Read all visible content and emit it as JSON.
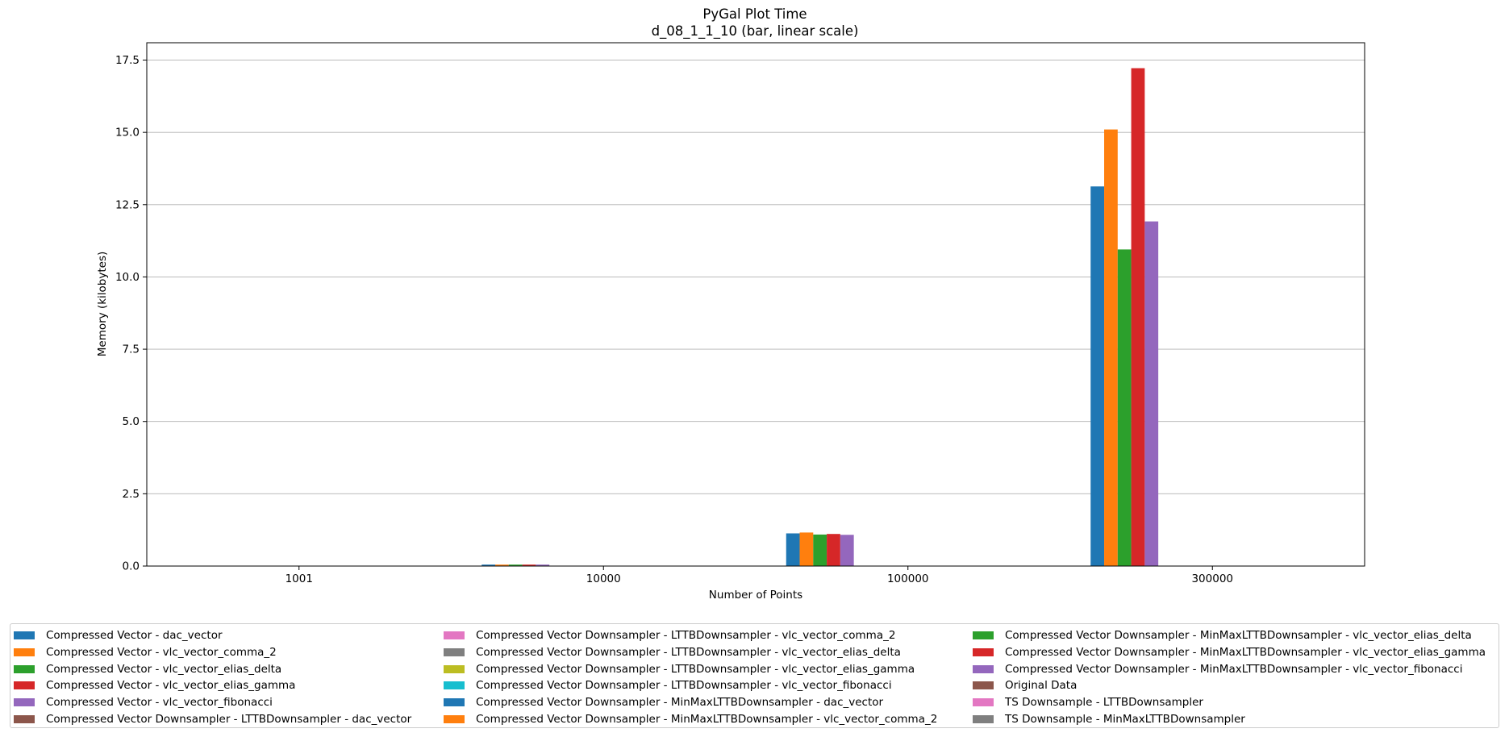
{
  "chart_data": {
    "type": "bar",
    "title": "PyGal Plot Time",
    "subtitle": "d_08_1_1_10 (bar, linear scale)",
    "xlabel": "Number of Points",
    "ylabel": "Memory (kilobytes)",
    "categories": [
      "1001",
      "10000",
      "100000",
      "300000"
    ],
    "ylim": [
      0,
      18.1
    ],
    "yticks": [
      "0.0",
      "2.5",
      "5.0",
      "7.5",
      "10.0",
      "12.5",
      "15.0",
      "17.5"
    ],
    "grid": "horizontal",
    "legend_placement": "bottom",
    "series": [
      {
        "name": "Compressed Vector - dac_vector",
        "color": "#1f77b4",
        "values": [
          0.01,
          0.05,
          1.13,
          13.13
        ]
      },
      {
        "name": "Compressed Vector - vlc_vector_comma_2",
        "color": "#ff7f0e",
        "values": [
          0.01,
          0.05,
          1.16,
          15.1
        ]
      },
      {
        "name": "Compressed Vector - vlc_vector_elias_delta",
        "color": "#2ca02c",
        "values": [
          0.01,
          0.05,
          1.09,
          10.95
        ]
      },
      {
        "name": "Compressed Vector - vlc_vector_elias_gamma",
        "color": "#d62728",
        "values": [
          0.01,
          0.05,
          1.11,
          17.22
        ]
      },
      {
        "name": "Compressed Vector - vlc_vector_fibonacci",
        "color": "#9467bd",
        "values": [
          0.01,
          0.05,
          1.08,
          11.92
        ]
      },
      {
        "name": "Compressed Vector Downsampler - LTTBDownsampler - dac_vector",
        "color": "#8c564b",
        "values": [
          0.01,
          0.01,
          0.01,
          0.01
        ]
      },
      {
        "name": "Compressed Vector Downsampler - LTTBDownsampler - vlc_vector_comma_2",
        "color": "#e377c2",
        "values": [
          0.01,
          0.01,
          0.01,
          0.01
        ]
      },
      {
        "name": "Compressed Vector Downsampler - LTTBDownsampler - vlc_vector_elias_delta",
        "color": "#7f7f7f",
        "values": [
          0.01,
          0.01,
          0.01,
          0.01
        ]
      },
      {
        "name": "Compressed Vector Downsampler - LTTBDownsampler - vlc_vector_elias_gamma",
        "color": "#bcbd22",
        "values": [
          0.01,
          0.01,
          0.01,
          0.01
        ]
      },
      {
        "name": "Compressed Vector Downsampler - LTTBDownsampler - vlc_vector_fibonacci",
        "color": "#17becf",
        "values": [
          0.01,
          0.01,
          0.01,
          0.01
        ]
      },
      {
        "name": "Compressed Vector Downsampler - MinMaxLTTBDownsampler - dac_vector",
        "color": "#1f77b4",
        "values": [
          0.01,
          0.01,
          0.01,
          0.01
        ]
      },
      {
        "name": "Compressed Vector Downsampler - MinMaxLTTBDownsampler - vlc_vector_comma_2",
        "color": "#ff7f0e",
        "values": [
          0.01,
          0.01,
          0.01,
          0.01
        ]
      },
      {
        "name": "Compressed Vector Downsampler - MinMaxLTTBDownsampler - vlc_vector_elias_delta",
        "color": "#2ca02c",
        "values": [
          0.01,
          0.01,
          0.01,
          0.01
        ]
      },
      {
        "name": "Compressed Vector Downsampler - MinMaxLTTBDownsampler - vlc_vector_elias_gamma",
        "color": "#d62728",
        "values": [
          0.01,
          0.01,
          0.01,
          0.01
        ]
      },
      {
        "name": "Compressed Vector Downsampler - MinMaxLTTBDownsampler - vlc_vector_fibonacci",
        "color": "#9467bd",
        "values": [
          0.01,
          0.01,
          0.01,
          0.01
        ]
      },
      {
        "name": "Original Data",
        "color": "#8c564b",
        "values": [
          0.01,
          0.01,
          0.01,
          0.01
        ]
      },
      {
        "name": "TS Downsample - LTTBDownsampler",
        "color": "#e377c2",
        "values": [
          0.01,
          0.01,
          0.01,
          0.01
        ]
      },
      {
        "name": "TS Downsample - MinMaxLTTBDownsampler",
        "color": "#7f7f7f",
        "values": [
          0.01,
          0.01,
          0.01,
          0.01
        ]
      }
    ]
  }
}
